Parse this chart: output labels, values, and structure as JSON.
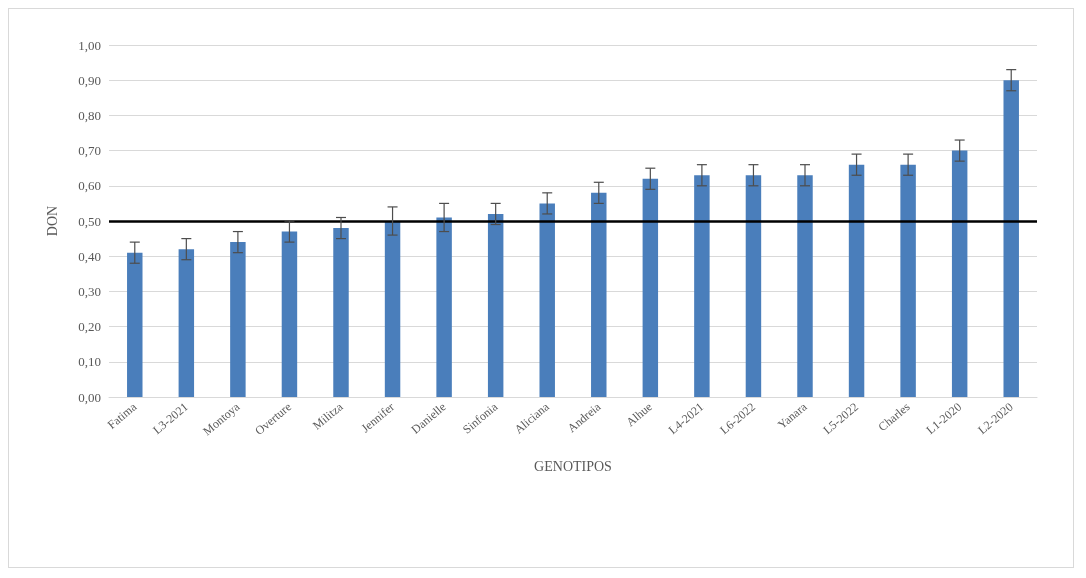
{
  "chart_data": {
    "type": "bar",
    "xlabel": "GENOTIPOS",
    "ylabel": "DON",
    "categories": [
      "Fatima",
      "L3-2021",
      "Montoya",
      "Overture",
      "Militza",
      "Jennifer",
      "Danielle",
      "Sinfonia",
      "Aliciana",
      "Andreia",
      "Alhue",
      "L4-2021",
      "L6-2022",
      "Yanara",
      "L5-2022",
      "Charles",
      "L1-2020",
      "L2-2020"
    ],
    "values": [
      0.41,
      0.42,
      0.44,
      0.47,
      0.48,
      0.5,
      0.51,
      0.52,
      0.55,
      0.58,
      0.62,
      0.63,
      0.63,
      0.63,
      0.66,
      0.66,
      0.7,
      0.9
    ],
    "errors": [
      0.03,
      0.03,
      0.03,
      0.03,
      0.03,
      0.04,
      0.04,
      0.03,
      0.03,
      0.03,
      0.03,
      0.03,
      0.03,
      0.03,
      0.03,
      0.03,
      0.03,
      0.03
    ],
    "color": "#4a7ebb",
    "ylim": [
      0,
      1
    ],
    "yticks": [
      {
        "value": 0,
        "label": "0,00"
      },
      {
        "value": 0.1,
        "label": "0,10"
      },
      {
        "value": 0.2,
        "label": "0,20"
      },
      {
        "value": 0.3,
        "label": "0,30"
      },
      {
        "value": 0.4,
        "label": "0,40"
      },
      {
        "value": 0.5,
        "label": "0,50"
      },
      {
        "value": 0.6,
        "label": "0,60"
      },
      {
        "value": 0.7,
        "label": "0,70"
      },
      {
        "value": 0.8,
        "label": "0,80"
      },
      {
        "value": 0.9,
        "label": "0,90"
      },
      {
        "value": 1,
        "label": "1,00"
      }
    ],
    "ref_lines": [
      {
        "axis": "y",
        "value": 0.5,
        "color": "#000000"
      }
    ],
    "grid": "y"
  }
}
